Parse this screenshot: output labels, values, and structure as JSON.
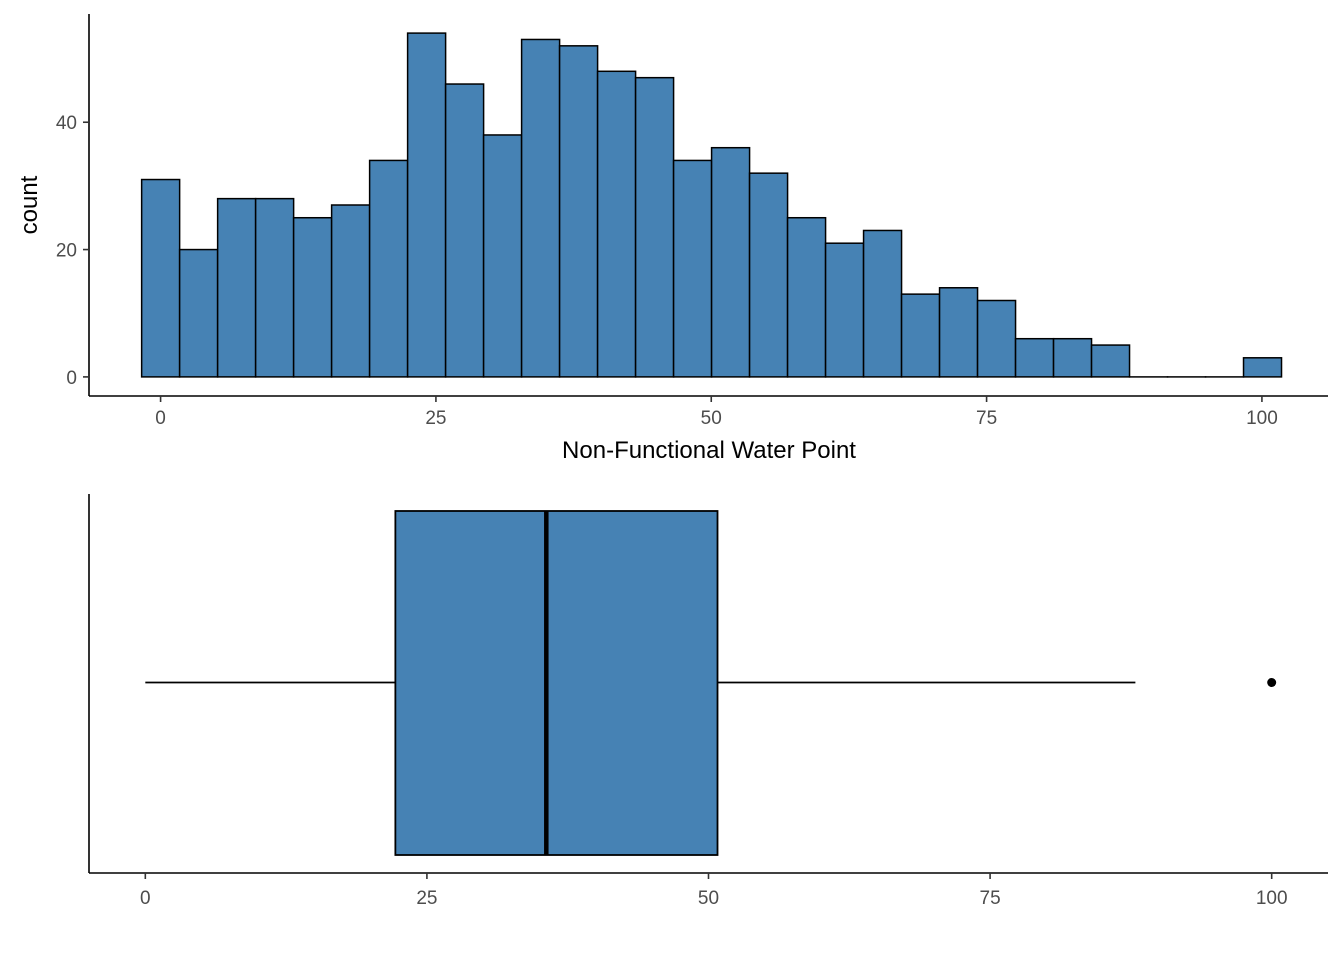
{
  "colors": {
    "fill": "#4682B4",
    "outline": "#000000"
  },
  "chart_data": [
    {
      "type": "bar",
      "subtype": "histogram",
      "xlabel": "Non-Functional Water Point",
      "ylabel": "count",
      "bin_width": 3.45,
      "bin_start": -1.72,
      "values": [
        31,
        20,
        28,
        28,
        25,
        27,
        34,
        54,
        46,
        38,
        53,
        52,
        48,
        47,
        34,
        36,
        32,
        25,
        21,
        23,
        13,
        14,
        12,
        6,
        6,
        5,
        0,
        0,
        0,
        3
      ],
      "xlim": [
        -6.5,
        106
      ],
      "ylim": [
        -3,
        57
      ],
      "x_ticks": [
        0,
        25,
        50,
        75,
        100
      ],
      "x_tick_labels": [
        "0",
        "25",
        "50",
        "75",
        "100"
      ],
      "y_ticks": [
        0,
        20,
        40
      ],
      "y_tick_labels": [
        "0",
        "20",
        "40"
      ]
    },
    {
      "type": "boxplot",
      "orientation": "horizontal",
      "min": 0,
      "q1": 22.2,
      "median": 35.6,
      "q3": 50.8,
      "max": 87.9,
      "outliers": [
        100
      ],
      "xlim": [
        -5,
        105
      ],
      "x_ticks": [
        0,
        25,
        50,
        75,
        100
      ],
      "x_tick_labels": [
        "0",
        "25",
        "50",
        "75",
        "100"
      ]
    }
  ]
}
